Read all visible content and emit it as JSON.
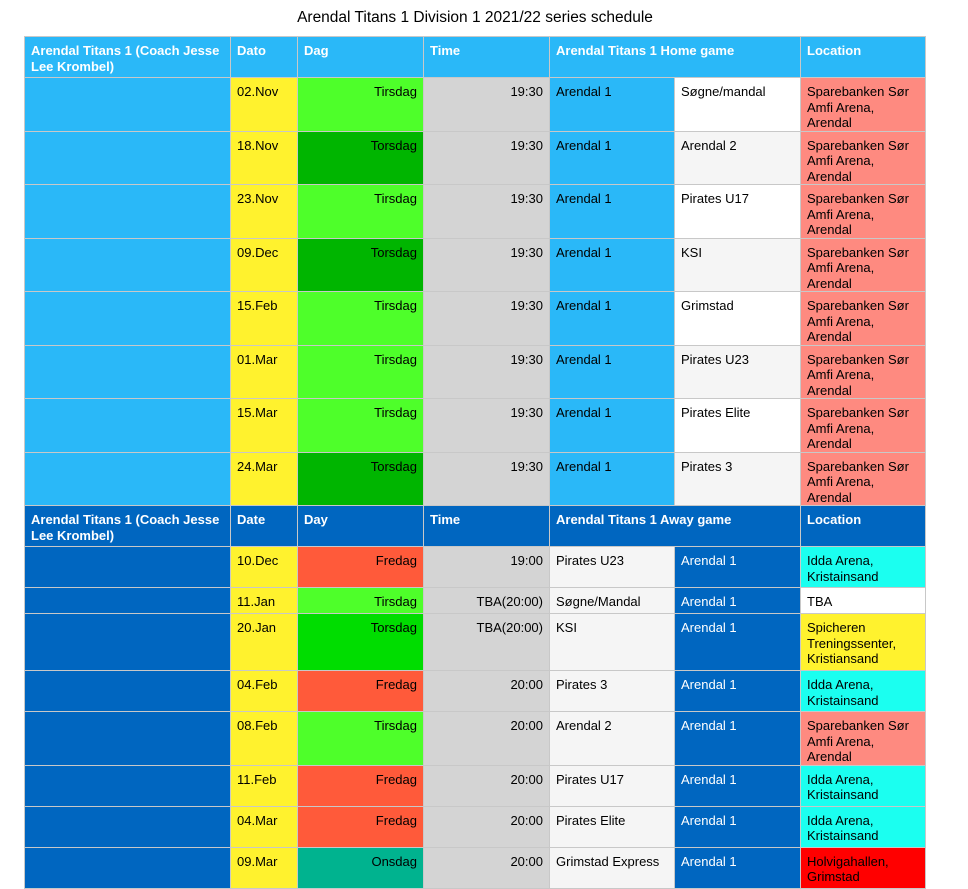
{
  "title": "Arendal Titans 1 Division 1 2021/22 series schedule",
  "colors": {
    "home_blue": "#2ab8f8",
    "away_blue": "#0066c0",
    "date_yellow": "#fff22e",
    "time_grey": "#d4d4d4",
    "tirsdag_green": "#4eff2a",
    "torsdag_green_dark": "#00b500",
    "torsdag_green_bright": "#00dd00",
    "fredag_red": "#ff5a3a",
    "onsdag_teal": "#00b38f",
    "loc_salmon": "#fe8a80",
    "loc_cyan": "#1bfff0",
    "loc_yellow": "#fff22e",
    "loc_red": "#ff0000",
    "loc_white": "#ffffff"
  },
  "home": {
    "headers": {
      "team": "Arendal Titans 1 (Coach Jesse Lee Krombel)",
      "date": "Dato",
      "day": "Dag",
      "time": "Time",
      "game": "Arendal Titans 1 Home game",
      "location": "Location"
    },
    "rows": [
      {
        "date": "02.Nov",
        "day": "Tirsdag",
        "day_color": "#4eff2a",
        "time": "19:30",
        "home": "Arendal 1",
        "away": "Søgne/mandal",
        "location": "Sparebanken Sør Amfi Arena, Arendal",
        "loc_color": "#fe8a80"
      },
      {
        "date": "18.Nov",
        "day": "Torsdag",
        "day_color": "#00b500",
        "time": "19:30",
        "home": "Arendal 1",
        "away": "Arendal 2",
        "location": "Sparebanken Sør Amfi Arena, Arendal",
        "loc_color": "#fe8a80"
      },
      {
        "date": "23.Nov",
        "day": "Tirsdag",
        "day_color": "#4eff2a",
        "time": "19:30",
        "home": "Arendal 1",
        "away": "Pirates U17",
        "location": "Sparebanken Sør Amfi Arena, Arendal",
        "loc_color": "#fe8a80"
      },
      {
        "date": "09.Dec",
        "day": "Torsdag",
        "day_color": "#00b500",
        "time": "19:30",
        "home": "Arendal 1",
        "away": "KSI",
        "location": "Sparebanken Sør Amfi Arena, Arendal",
        "loc_color": "#fe8a80"
      },
      {
        "date": "15.Feb",
        "day": "Tirsdag",
        "day_color": "#4eff2a",
        "time": "19:30",
        "home": "Arendal 1",
        "away": "Grimstad",
        "location": "Sparebanken Sør Amfi Arena, Arendal",
        "loc_color": "#fe8a80"
      },
      {
        "date": "01.Mar",
        "day": "Tirsdag",
        "day_color": "#4eff2a",
        "time": "19:30",
        "home": "Arendal 1",
        "away": "Pirates U23",
        "location": "Sparebanken Sør Amfi Arena, Arendal",
        "loc_color": "#fe8a80"
      },
      {
        "date": "15.Mar",
        "day": "Tirsdag",
        "day_color": "#4eff2a",
        "time": "19:30",
        "home": "Arendal 1",
        "away": "Pirates Elite",
        "location": "Sparebanken Sør Amfi Arena, Arendal",
        "loc_color": "#fe8a80"
      },
      {
        "date": "24.Mar",
        "day": "Torsdag",
        "day_color": "#00b500",
        "time": "19:30",
        "home": "Arendal 1",
        "away": "Pirates 3",
        "location": "Sparebanken Sør Amfi Arena, Arendal",
        "loc_color": "#fe8a80"
      }
    ]
  },
  "away": {
    "headers": {
      "team": "Arendal Titans 1 (Coach Jesse Lee Krombel)",
      "date": "Date",
      "day": "Day",
      "time": "Time",
      "game": "Arendal Titans 1 Away game",
      "location": "Location"
    },
    "rows": [
      {
        "date": "10.Dec",
        "day": "Fredag",
        "day_color": "#ff5a3a",
        "time": "19:00",
        "home": "Pirates U23",
        "away": "Arendal 1",
        "location": "Idda Arena, Kristainsand",
        "loc_color": "#1bfff0"
      },
      {
        "date": "11.Jan",
        "day": "Tirsdag",
        "day_color": "#4eff2a",
        "time": "TBA(20:00)",
        "home": "Søgne/Mandal",
        "away": "Arendal 1",
        "location": "TBA",
        "loc_color": "#ffffff"
      },
      {
        "date": "20.Jan",
        "day": "Torsdag",
        "day_color": "#00dd00",
        "time": "TBA(20:00)",
        "home": "KSI",
        "away": "Arendal 1",
        "location": "Spicheren Treningssenter, Kristiansand",
        "loc_color": "#fff22e"
      },
      {
        "date": "04.Feb",
        "day": "Fredag",
        "day_color": "#ff5a3a",
        "time": "20:00",
        "home": "Pirates 3",
        "away": "Arendal 1",
        "location": "Idda Arena, Kristainsand",
        "loc_color": "#1bfff0"
      },
      {
        "date": "08.Feb",
        "day": "Tirsdag",
        "day_color": "#4eff2a",
        "time": "20:00",
        "home": "Arendal 2",
        "away": "Arendal 1",
        "location": "Sparebanken Sør Amfi Arena, Arendal",
        "loc_color": "#fe8a80"
      },
      {
        "date": "11.Feb",
        "day": "Fredag",
        "day_color": "#ff5a3a",
        "time": "20:00",
        "home": "Pirates U17",
        "away": "Arendal 1",
        "location": "Idda Arena, Kristainsand",
        "loc_color": "#1bfff0"
      },
      {
        "date": "04.Mar",
        "day": "Fredag",
        "day_color": "#ff5a3a",
        "time": "20:00",
        "home": "Pirates Elite",
        "away": "Arendal 1",
        "location": "Idda Arena, Kristainsand",
        "loc_color": "#1bfff0"
      },
      {
        "date": "09.Mar",
        "day": "Onsdag",
        "day_color": "#00b38f",
        "time": "20:00",
        "home": "Grimstad Express",
        "away": "Arendal 1",
        "location": "Holvigahallen, Grimstad",
        "loc_color": "#ff0000"
      }
    ]
  }
}
